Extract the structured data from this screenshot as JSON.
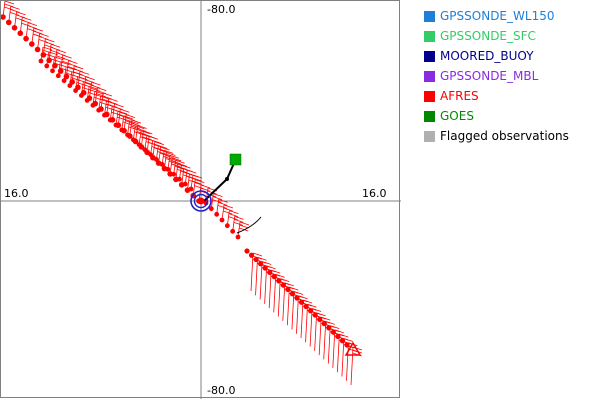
{
  "axes": {
    "top_label": "-80.0",
    "bottom_label": "-80.0",
    "left_label": "16.0",
    "right_label": "16.0"
  },
  "legend": [
    {
      "label": "GPSSONDE_WL150",
      "color": "#1e7fd6",
      "text_color": "#1e7fd6"
    },
    {
      "label": "GPSSONDE_SFC",
      "color": "#33cc66",
      "text_color": "#33cc66"
    },
    {
      "label": "MOORED_BUOY",
      "color": "#00008b",
      "text_color": "#00008b"
    },
    {
      "label": "GPSSONDE_MBL",
      "color": "#8a2be2",
      "text_color": "#8a2be2"
    },
    {
      "label": "AFRES",
      "color": "#ff0000",
      "text_color": "#ff0000"
    },
    {
      "label": "GOES",
      "color": "#008800",
      "text_color": "#008800"
    },
    {
      "label": "Flagged observations",
      "color": "#b0b0b0",
      "text_color": "#000000"
    }
  ],
  "colors": {
    "afres": "#ff0000",
    "goes": "#00aa00",
    "marker": "#2222cc"
  }
}
